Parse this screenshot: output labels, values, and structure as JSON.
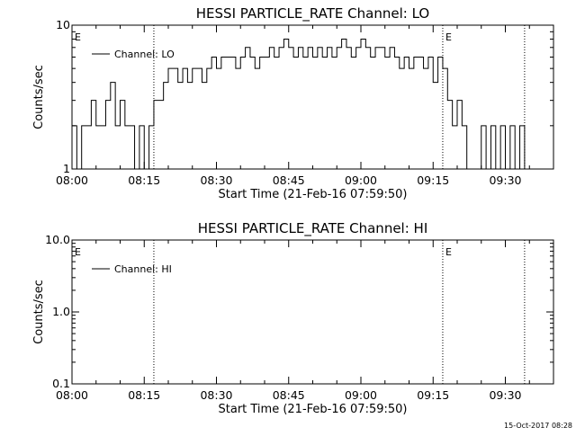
{
  "footer": {
    "timestamp": "15-Oct-2017 08:28"
  },
  "chart_data": [
    {
      "type": "line",
      "title": "HESSI PARTICLE_RATE Channel: LO",
      "xlabel": "Start Time (21-Feb-16 07:59:50)",
      "ylabel": "Counts/sec",
      "y_scale": "log",
      "ylim": [
        1,
        10
      ],
      "y_ticks": [
        "1",
        "10"
      ],
      "xlim": [
        "08:00",
        "09:40"
      ],
      "x_ticks": [
        "08:00",
        "08:15",
        "08:30",
        "08:45",
        "09:00",
        "09:15",
        "09:30"
      ],
      "legend": {
        "position": "top-left"
      },
      "event_markers": [
        {
          "time": "08:00",
          "label": "E"
        },
        {
          "time": "08:17",
          "label": ""
        },
        {
          "time": "09:17",
          "label": "E"
        },
        {
          "time": "09:34",
          "label": ""
        }
      ],
      "series": [
        {
          "name": "Channel: LO",
          "x": [
            "08:00",
            "08:01",
            "08:02",
            "08:03",
            "08:04",
            "08:05",
            "08:06",
            "08:07",
            "08:08",
            "08:09",
            "08:10",
            "08:11",
            "08:12",
            "08:13",
            "08:14",
            "08:15",
            "08:16",
            "08:17",
            "08:18",
            "08:19",
            "08:20",
            "08:21",
            "08:22",
            "08:23",
            "08:24",
            "08:25",
            "08:26",
            "08:27",
            "08:28",
            "08:29",
            "08:30",
            "08:31",
            "08:32",
            "08:33",
            "08:34",
            "08:35",
            "08:36",
            "08:37",
            "08:38",
            "08:39",
            "08:40",
            "08:41",
            "08:42",
            "08:43",
            "08:44",
            "08:45",
            "08:46",
            "08:47",
            "08:48",
            "08:49",
            "08:50",
            "08:51",
            "08:52",
            "08:53",
            "08:54",
            "08:55",
            "08:56",
            "08:57",
            "08:58",
            "08:59",
            "09:00",
            "09:01",
            "09:02",
            "09:03",
            "09:04",
            "09:05",
            "09:06",
            "09:07",
            "09:08",
            "09:09",
            "09:10",
            "09:11",
            "09:12",
            "09:13",
            "09:14",
            "09:15",
            "09:16",
            "09:17",
            "09:18",
            "09:19",
            "09:20",
            "09:21",
            "09:22",
            "09:23",
            "09:24",
            "09:25",
            "09:26",
            "09:27",
            "09:28",
            "09:29",
            "09:30",
            "09:31",
            "09:32",
            "09:33",
            "09:34"
          ],
          "values": [
            2,
            1,
            2,
            2,
            3,
            2,
            2,
            3,
            4,
            2,
            3,
            2,
            2,
            1,
            2,
            1,
            2,
            3,
            3,
            4,
            5,
            5,
            4,
            5,
            4,
            5,
            5,
            4,
            5,
            6,
            5,
            6,
            6,
            6,
            5,
            6,
            7,
            6,
            5,
            6,
            6,
            7,
            6,
            7,
            8,
            7,
            6,
            7,
            6,
            7,
            6,
            7,
            6,
            7,
            6,
            7,
            8,
            7,
            6,
            7,
            8,
            7,
            6,
            7,
            7,
            6,
            7,
            6,
            5,
            6,
            5,
            6,
            6,
            5,
            6,
            4,
            6,
            5,
            3,
            2,
            3,
            2,
            1,
            1,
            1,
            2,
            1,
            2,
            1,
            2,
            1,
            2,
            1,
            2,
            1
          ]
        }
      ]
    },
    {
      "type": "line",
      "title": "HESSI PARTICLE_RATE Channel: HI",
      "xlabel": "Start Time (21-Feb-16 07:59:50)",
      "ylabel": "Counts/sec",
      "y_scale": "log",
      "ylim": [
        0.1,
        10
      ],
      "y_ticks": [
        "0.1",
        "1.0",
        "10.0"
      ],
      "xlim": [
        "08:00",
        "09:40"
      ],
      "x_ticks": [
        "08:00",
        "08:15",
        "08:30",
        "08:45",
        "09:00",
        "09:15",
        "09:30"
      ],
      "legend": {
        "position": "top-left"
      },
      "event_markers": [
        {
          "time": "08:00",
          "label": "E"
        },
        {
          "time": "08:17",
          "label": ""
        },
        {
          "time": "09:17",
          "label": "E"
        },
        {
          "time": "09:34",
          "label": ""
        }
      ],
      "series": [
        {
          "name": "Channel: HI",
          "x": [],
          "values": []
        }
      ]
    }
  ]
}
